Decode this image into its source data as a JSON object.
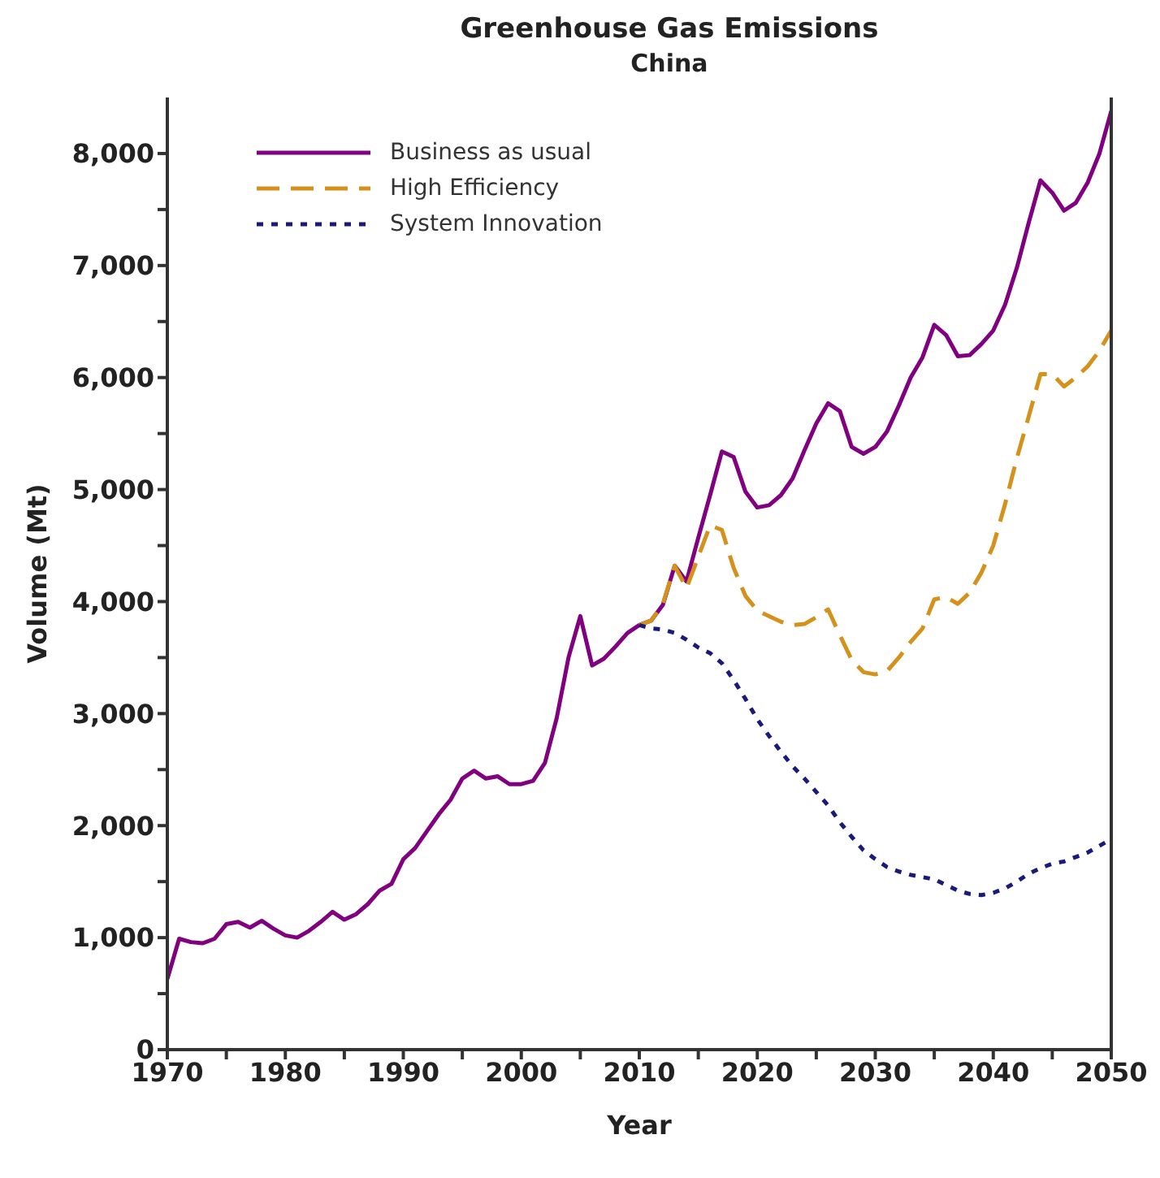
{
  "chart_data": {
    "type": "line",
    "title": "Greenhouse Gas Emissions",
    "subtitle": "China",
    "xlabel": "Year",
    "ylabel": "Volume (Mt)",
    "xlim": [
      1970,
      2050
    ],
    "xticks": [
      1970,
      {
        "value": 1975,
        "label": null
      },
      1980,
      {
        "value": 1985,
        "label": null
      },
      1990,
      {
        "value": 1995,
        "label": null
      },
      2000,
      {
        "value": 2005,
        "label": null
      },
      2010,
      {
        "value": 2015,
        "label": null
      },
      2020,
      {
        "value": 2025,
        "label": null
      },
      2030,
      {
        "value": 2035,
        "label": null
      },
      2040,
      {
        "value": 2045,
        "label": null
      },
      2050
    ],
    "ylim": [
      0,
      8500
    ],
    "yticks": [
      {
        "value": 0,
        "label": "0"
      },
      {
        "value": 500,
        "label": null
      },
      {
        "value": 1000,
        "label": "1,000"
      },
      {
        "value": 1500,
        "label": null
      },
      {
        "value": 2000,
        "label": "2,000"
      },
      {
        "value": 2500,
        "label": null
      },
      {
        "value": 3000,
        "label": "3,000"
      },
      {
        "value": 3500,
        "label": null
      },
      {
        "value": 4000,
        "label": "4,000"
      },
      {
        "value": 4500,
        "label": null
      },
      {
        "value": 5000,
        "label": "5,000"
      },
      {
        "value": 5500,
        "label": null
      },
      {
        "value": 6000,
        "label": "6,000"
      },
      {
        "value": 6500,
        "label": null
      },
      {
        "value": 7000,
        "label": "7,000"
      },
      {
        "value": 7500,
        "label": null
      },
      {
        "value": 8000,
        "label": "8,000"
      }
    ],
    "grid": false,
    "legend": "top left",
    "marker": "none",
    "series": [
      {
        "name": "Business as usual",
        "color": "#800080",
        "line_style": "solid",
        "x": [
          1970,
          1971,
          1972,
          1973,
          1974,
          1975,
          1976,
          1977,
          1978,
          1979,
          1980,
          1981,
          1982,
          1983,
          1984,
          1985,
          1986,
          1987,
          1988,
          1989,
          1990,
          1991,
          1992,
          1993,
          1994,
          1995,
          1996,
          1997,
          1998,
          1999,
          2000,
          2001,
          2002,
          2003,
          2004,
          2005,
          2006,
          2007,
          2008,
          2009,
          2010,
          2011,
          2012,
          2013,
          2014,
          2015,
          2016,
          2017,
          2018,
          2019,
          2020,
          2021,
          2022,
          2023,
          2024,
          2025,
          2026,
          2027,
          2028,
          2029,
          2030,
          2031,
          2032,
          2033,
          2034,
          2035,
          2036,
          2037,
          2038,
          2039,
          2040,
          2041,
          2042,
          2043,
          2044,
          2045,
          2046,
          2047,
          2048,
          2049,
          2050
        ],
        "values": [
          630,
          990,
          960,
          950,
          990,
          1120,
          1140,
          1090,
          1150,
          1080,
          1020,
          1000,
          1060,
          1140,
          1230,
          1160,
          1210,
          1300,
          1420,
          1480,
          1700,
          1800,
          1950,
          2100,
          2230,
          2420,
          2490,
          2420,
          2440,
          2370,
          2370,
          2400,
          2560,
          2960,
          3500,
          3870,
          3430,
          3490,
          3600,
          3720,
          3790,
          3830,
          3970,
          4320,
          4180,
          4570,
          4950,
          5340,
          5290,
          4980,
          4840,
          4860,
          4950,
          5100,
          5350,
          5590,
          5770,
          5700,
          5380,
          5320,
          5380,
          5520,
          5750,
          6000,
          6180,
          6470,
          6380,
          6190,
          6200,
          6300,
          6420,
          6650,
          6980,
          7380,
          7760,
          7650,
          7490,
          7560,
          7740,
          8000,
          8380
        ]
      },
      {
        "name": "High Efficiency",
        "color": "#d4921c",
        "line_style": "dashed",
        "x": [
          2010,
          2011,
          2012,
          2013,
          2014,
          2015,
          2016,
          2017,
          2018,
          2019,
          2020,
          2021,
          2022,
          2023,
          2024,
          2025,
          2026,
          2027,
          2028,
          2029,
          2030,
          2031,
          2032,
          2033,
          2034,
          2035,
          2036,
          2037,
          2038,
          2039,
          2040,
          2041,
          2042,
          2043,
          2044,
          2045,
          2046,
          2047,
          2048,
          2049,
          2050
        ],
        "values": [
          3790,
          3830,
          3980,
          4320,
          4120,
          4400,
          4680,
          4640,
          4300,
          4050,
          3920,
          3870,
          3820,
          3790,
          3800,
          3860,
          3930,
          3700,
          3480,
          3370,
          3350,
          3380,
          3500,
          3640,
          3760,
          4020,
          4040,
          3980,
          4080,
          4260,
          4500,
          4870,
          5280,
          5650,
          6030,
          6030,
          5920,
          6000,
          6100,
          6240,
          6420
        ]
      },
      {
        "name": "System Innovation",
        "color": "#1a1a7a",
        "line_style": "dotted",
        "x": [
          2010,
          2011,
          2012,
          2013,
          2014,
          2015,
          2016,
          2017,
          2018,
          2019,
          2020,
          2021,
          2022,
          2023,
          2024,
          2025,
          2026,
          2027,
          2028,
          2029,
          2030,
          2031,
          2032,
          2033,
          2034,
          2035,
          2036,
          2037,
          2038,
          2039,
          2040,
          2041,
          2042,
          2043,
          2044,
          2045,
          2046,
          2047,
          2048,
          2049,
          2050
        ],
        "values": [
          3790,
          3760,
          3750,
          3720,
          3660,
          3590,
          3540,
          3450,
          3300,
          3130,
          2950,
          2800,
          2660,
          2530,
          2420,
          2300,
          2180,
          2030,
          1900,
          1780,
          1700,
          1630,
          1590,
          1560,
          1540,
          1520,
          1470,
          1420,
          1390,
          1380,
          1400,
          1440,
          1500,
          1570,
          1620,
          1660,
          1680,
          1720,
          1760,
          1820,
          1880
        ]
      }
    ]
  }
}
